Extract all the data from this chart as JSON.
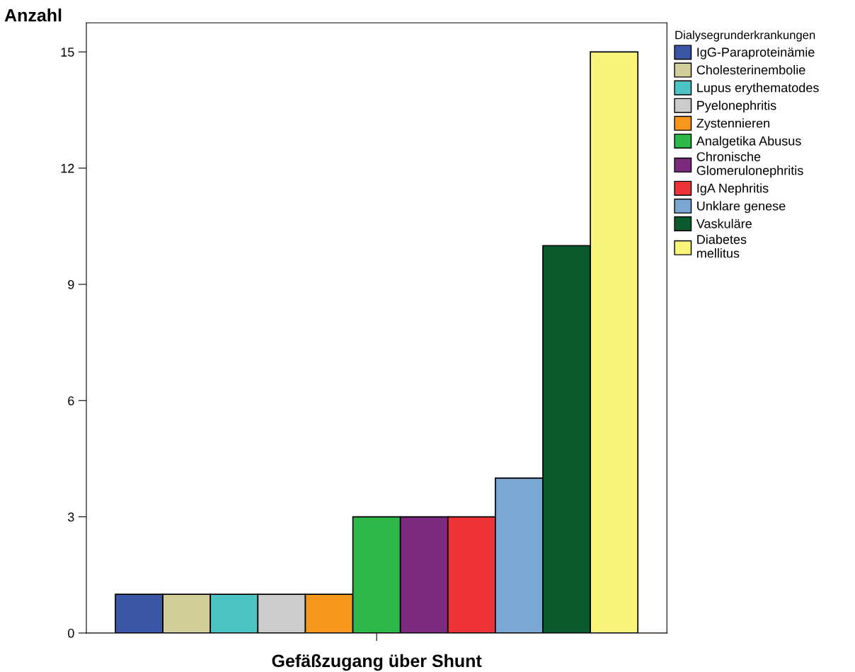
{
  "chart_data": {
    "type": "bar",
    "ylabel": "Anzahl",
    "xlabel": "Gefäßzugang über Shunt",
    "legend_title": "Dialysegrunderkrankungen",
    "categories": [
      null
    ],
    "series": [
      {
        "name": "IgG-Paraproteinämie",
        "color": "#3c56a6",
        "values": [
          1
        ]
      },
      {
        "name": "Cholesterinembolie",
        "color": "#d3cf9a",
        "values": [
          1
        ]
      },
      {
        "name": "Lupus erythematodes",
        "color": "#4cc4c4",
        "values": [
          1
        ]
      },
      {
        "name": "Pyelonephritis",
        "color": "#cccccc",
        "values": [
          1
        ]
      },
      {
        "name": "Zystennieren",
        "color": "#f7981d",
        "values": [
          1
        ]
      },
      {
        "name": "Analgetika Abusus",
        "color": "#2fb84a",
        "values": [
          3
        ]
      },
      {
        "name": "Chronische\nGlomerulonephritis",
        "color": "#7b2a7e",
        "values": [
          3
        ]
      },
      {
        "name": "IgA Nephritis",
        "color": "#ee3338",
        "values": [
          3
        ]
      },
      {
        "name": "Unklare genese",
        "color": "#7ba7d4",
        "values": [
          4
        ]
      },
      {
        "name": "Vaskuläre",
        "color": "#0b5a2e",
        "values": [
          10
        ]
      },
      {
        "name": "Diabetes\nmellitus",
        "color": "#f9f57a",
        "values": [
          15
        ]
      }
    ],
    "ylim": [
      0,
      15.75
    ],
    "yticks": [
      0,
      3,
      6,
      9,
      12,
      15
    ],
    "grid": false,
    "legend": "right"
  }
}
